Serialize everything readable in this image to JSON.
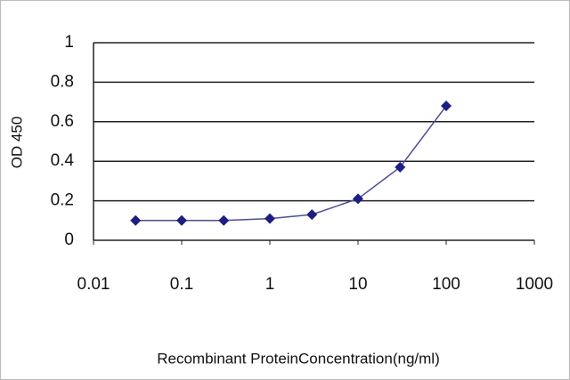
{
  "chart_data": {
    "type": "line",
    "x_label": "Recombinant ProteinConcentration(ng/ml)",
    "y_label": "OD 450",
    "x": [
      0.03,
      0.1,
      0.3,
      1,
      3,
      10,
      30,
      100
    ],
    "series": [
      {
        "color": "#1c1c8a",
        "values": [
          0.1,
          0.1,
          0.1,
          0.11,
          0.13,
          0.21,
          0.37,
          0.68
        ]
      }
    ],
    "xlim": [
      0.01,
      1000
    ],
    "xticks": [
      0.01,
      0.1,
      1,
      10,
      100,
      1000
    ],
    "xlog": true,
    "ylim": [
      0,
      1
    ],
    "yticks": [
      0,
      0.2,
      0.4,
      0.6,
      0.8,
      1
    ],
    "grid": true
  }
}
